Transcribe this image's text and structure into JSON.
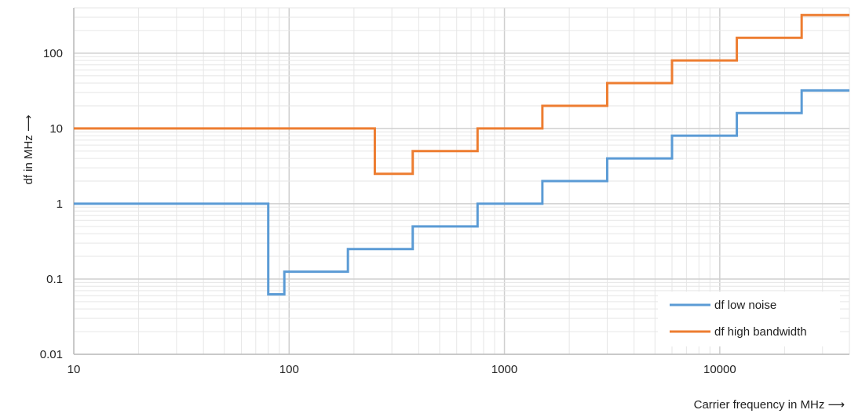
{
  "chart_data": {
    "type": "line",
    "xscale": "log",
    "yscale": "log",
    "xlim": [
      10,
      40000
    ],
    "ylim": [
      0.01,
      400
    ],
    "xlabel": "Carrier frequency in MHz ⟶",
    "ylabel": "df in MHz ⟶",
    "x_ticks": [
      {
        "value": 10,
        "label": "10"
      },
      {
        "value": 100,
        "label": "100"
      },
      {
        "value": 1000,
        "label": "1000"
      },
      {
        "value": 10000,
        "label": "10000"
      }
    ],
    "y_ticks": [
      {
        "value": 0.01,
        "label": "0.01"
      },
      {
        "value": 0.1,
        "label": "0.1"
      },
      {
        "value": 1,
        "label": "1"
      },
      {
        "value": 10,
        "label": "10"
      },
      {
        "value": 100,
        "label": "100"
      }
    ],
    "grid": true,
    "legend_position": "bottom-right",
    "series": [
      {
        "name": "df low noise",
        "color": "#5b9bd5",
        "x": [
          10,
          80,
          80,
          95,
          95,
          187.5,
          187.5,
          375,
          375,
          750,
          750,
          1500,
          1500,
          3000,
          3000,
          6000,
          6000,
          12000,
          12000,
          24000,
          24000,
          40000
        ],
        "y": [
          1,
          1,
          0.0625,
          0.0625,
          0.125,
          0.125,
          0.25,
          0.25,
          0.5,
          0.5,
          1,
          1,
          2,
          2,
          4,
          4,
          8,
          8,
          16,
          16,
          32,
          32
        ]
      },
      {
        "name": "df high bandwidth",
        "color": "#ed7d31",
        "x": [
          10,
          250,
          250,
          375,
          375,
          750,
          750,
          1500,
          1500,
          3000,
          3000,
          6000,
          6000,
          12000,
          12000,
          24000,
          24000,
          40000
        ],
        "y": [
          10,
          10,
          2.5,
          2.5,
          5,
          5,
          10,
          10,
          20,
          20,
          40,
          40,
          80,
          80,
          160,
          160,
          320,
          320
        ]
      }
    ]
  }
}
